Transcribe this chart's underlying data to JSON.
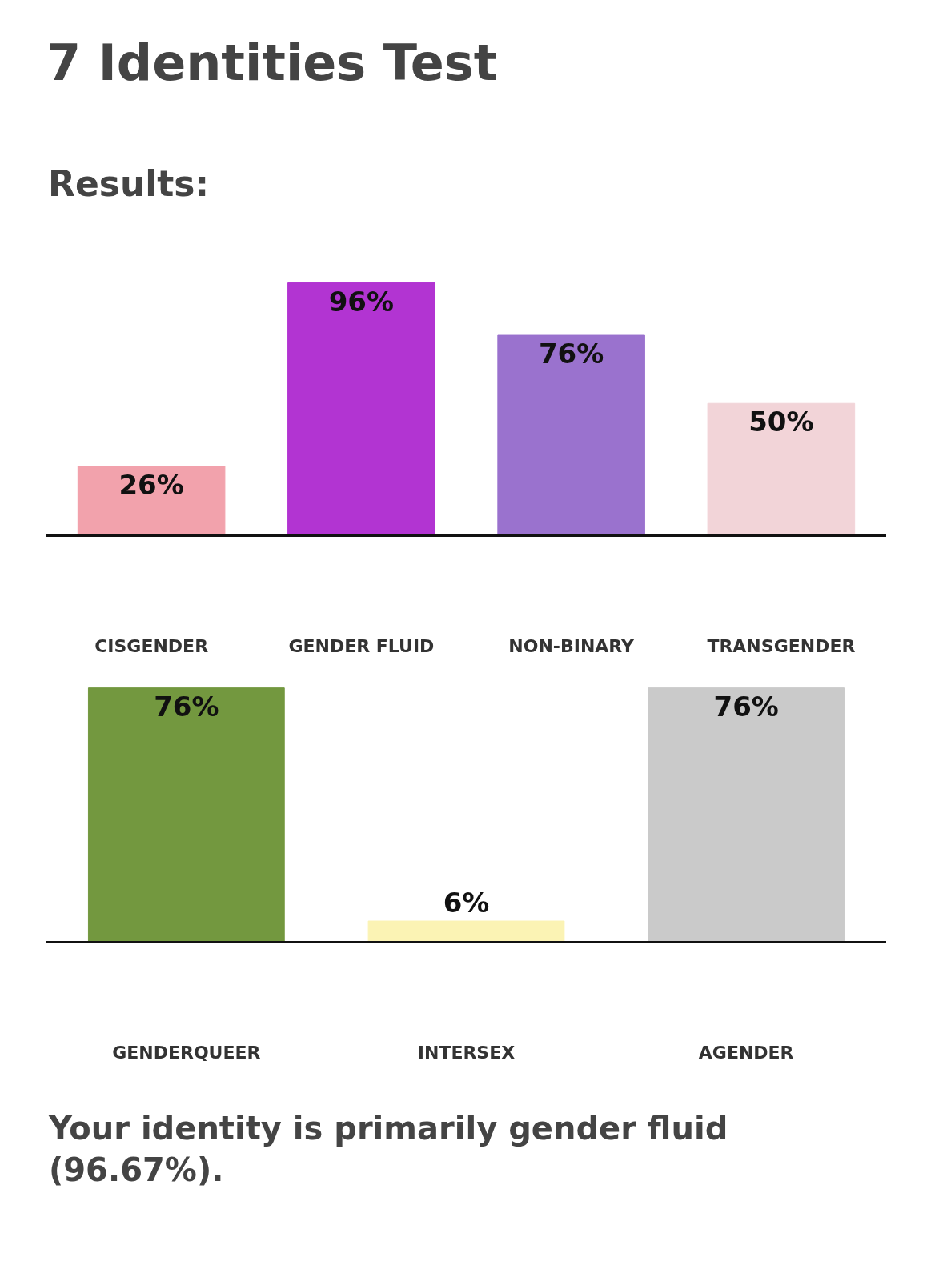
{
  "chart_data": [
    {
      "type": "bar",
      "title": "7 Identities Test",
      "subtitle": "Results:",
      "categories": [
        "CISGENDER",
        "GENDER FLUID",
        "NON-BINARY",
        "TRANSGENDER"
      ],
      "values": [
        26,
        96,
        76,
        50
      ],
      "value_labels": [
        "26%",
        "96%",
        "76%",
        "50%"
      ],
      "colors": [
        "#f2a2ac",
        "#b234d2",
        "#9a72ce",
        "#f2d4d8"
      ],
      "tick_labels": "x"
    },
    {
      "type": "bar",
      "categories": [
        "GENDERQUEER",
        "INTERSEX",
        "AGENDER"
      ],
      "values": [
        76,
        6,
        76
      ],
      "value_labels": [
        "76%",
        "6%",
        "76%"
      ],
      "colors": [
        "#73983f",
        "#fbf3b4",
        "#cacaca"
      ],
      "tick_labels": "x",
      "annotations": [
        "Your identity is primarily gender fluid (96.67%)."
      ]
    }
  ]
}
